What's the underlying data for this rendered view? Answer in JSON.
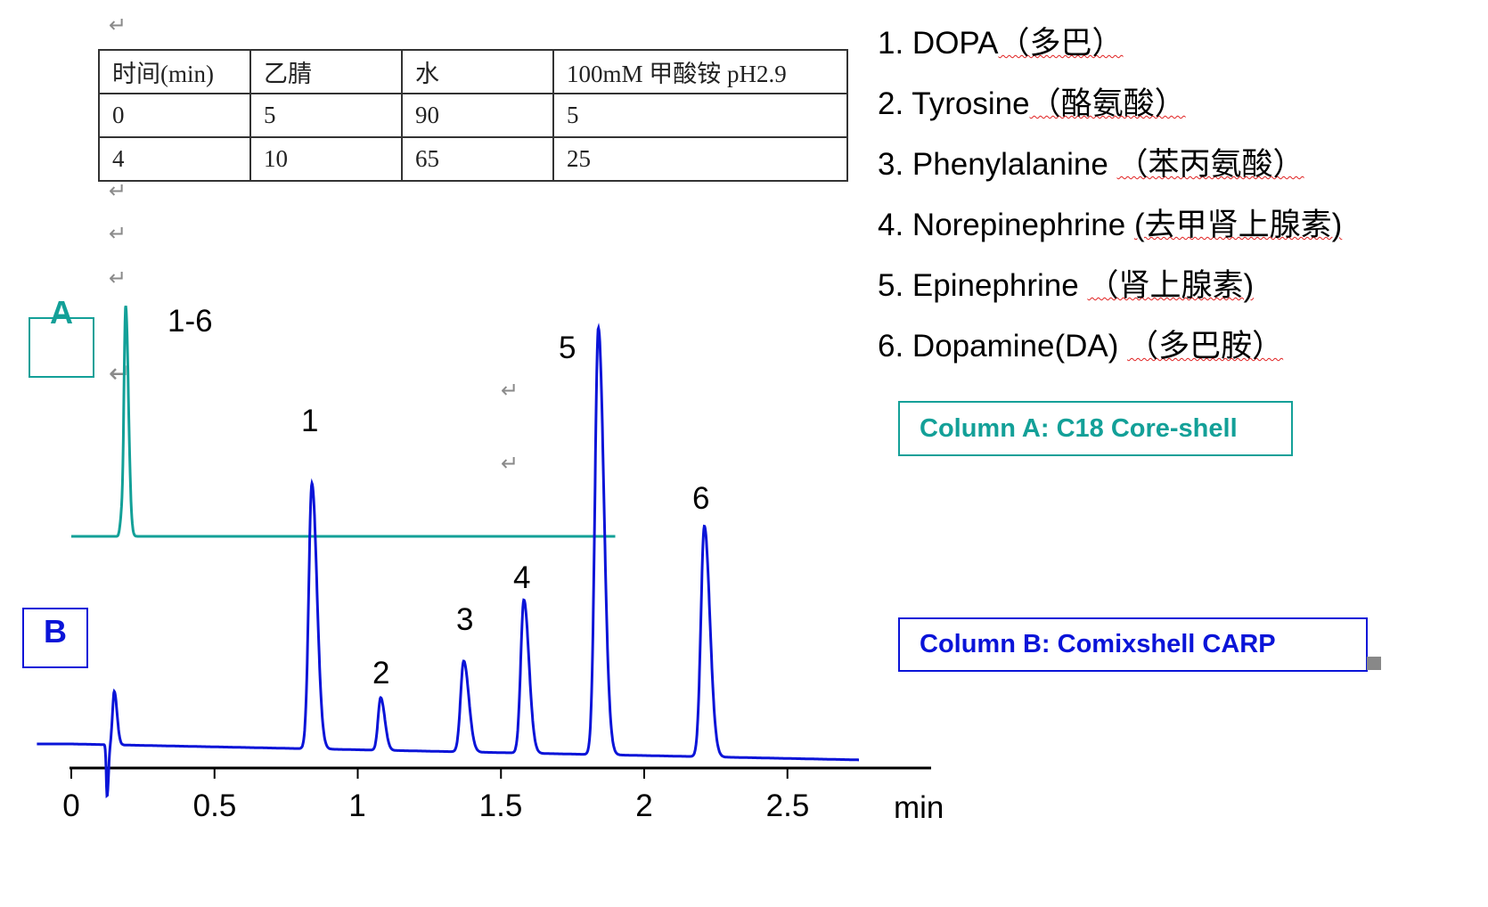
{
  "return_mark": "↵",
  "gradient_table": {
    "headers": [
      "时间(min)",
      "乙腈",
      "水",
      "100mM 甲酸铵 pH2.9"
    ],
    "rows": [
      [
        "0",
        "5",
        "90",
        "5"
      ],
      [
        "4",
        "10",
        "65",
        "25"
      ]
    ]
  },
  "compounds": [
    {
      "name": "1. DOPA",
      "cn": "（多巴）"
    },
    {
      "name": "2. Tyrosine",
      "cn": "（酪氨酸）"
    },
    {
      "name": "3. Phenylalanine ",
      "cn": "（苯丙氨酸）"
    },
    {
      "name": "4. Norepinephrine ",
      "cn": "(去甲肾上腺素)"
    },
    {
      "name": "5. Epinephrine ",
      "cn": "（肾上腺素)"
    },
    {
      "name": "6. Dopamine(DA) ",
      "cn": "（多巴胺）"
    }
  ],
  "column_a": {
    "tag": "A",
    "label": "Column A: C18 Core-shell",
    "color": "#13a098"
  },
  "column_b": {
    "tag": "B",
    "label": "Column B: Comixshell CARP",
    "color": "#0a14d8"
  },
  "chart_data": {
    "type": "line",
    "xlabel": "min",
    "xlim": [
      0,
      3
    ],
    "x_ticks": [
      "0",
      "0.5",
      "1",
      "1.5",
      "2",
      "2.5"
    ],
    "y_axis_shown": false,
    "grid": false,
    "series": [
      {
        "name": "A",
        "color": "#13a098",
        "x_range": [
          0,
          1.9
        ],
        "baseline": 233,
        "drift_per_min": 0,
        "peaks": [
          {
            "label": "1-6",
            "t": 0.19,
            "height": 256,
            "sigma": 0.006
          },
          {
            "label": "",
            "t": 0.175,
            "height": 20,
            "sigma": 0.005
          }
        ]
      },
      {
        "name": "B",
        "color": "#0a14d8",
        "x_range": [
          -0.12,
          2.75
        ],
        "baseline": 0,
        "drift_per_min": -6.5,
        "peaks": [
          {
            "label": "",
            "t": 0.125,
            "height": -58,
            "sigma": 0.003
          },
          {
            "label": "",
            "t": 0.15,
            "height": 60,
            "sigma": 0.006
          },
          {
            "label": "1",
            "t": 0.84,
            "height": 298,
            "sigma": 0.011
          },
          {
            "label": "2",
            "t": 1.08,
            "height": 59,
            "sigma": 0.009
          },
          {
            "label": "3",
            "t": 1.37,
            "height": 102,
            "sigma": 0.011
          },
          {
            "label": "4",
            "t": 1.58,
            "height": 172,
            "sigma": 0.011
          },
          {
            "label": "5",
            "t": 1.84,
            "height": 479,
            "sigma": 0.012
          },
          {
            "label": "6",
            "t": 2.21,
            "height": 259,
            "sigma": 0.012
          }
        ]
      }
    ]
  }
}
